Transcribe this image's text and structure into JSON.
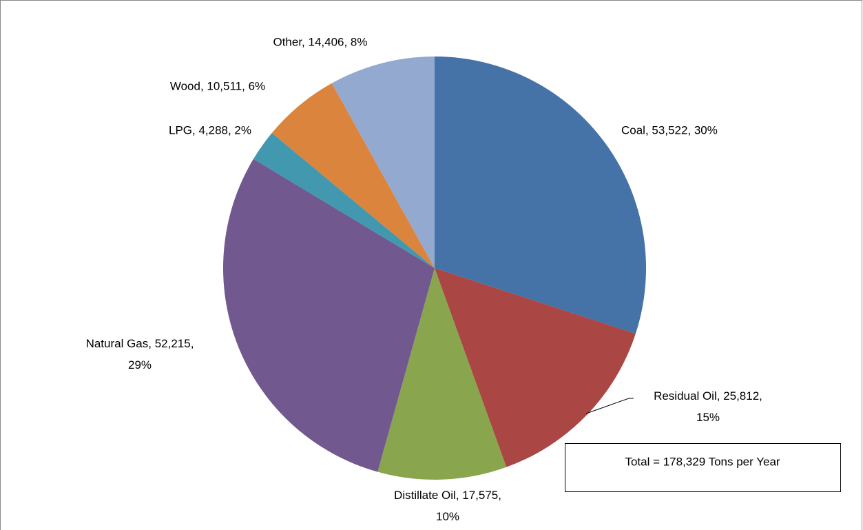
{
  "chart_data": {
    "type": "pie",
    "values": [
      53522,
      25812,
      17575,
      52215,
      4288,
      10511,
      14406
    ],
    "value_labels": [
      "Coal, 53,522, 30%",
      "Residual Oil, 25,812, 15%",
      "Distillate Oil, 17,575, 10%",
      "Natural Gas, 52,215, 29%",
      "LPG, 4,288, 2%",
      "Wood, 10,511, 6%",
      "Other, 14,406, 8%"
    ],
    "colors": [
      "#4572a7",
      "#aa4643",
      "#89a54e",
      "#71588f",
      "#4198af",
      "#db843d",
      "#93a9cf"
    ],
    "annotation": "Total = 178,329 Tons per Year"
  }
}
